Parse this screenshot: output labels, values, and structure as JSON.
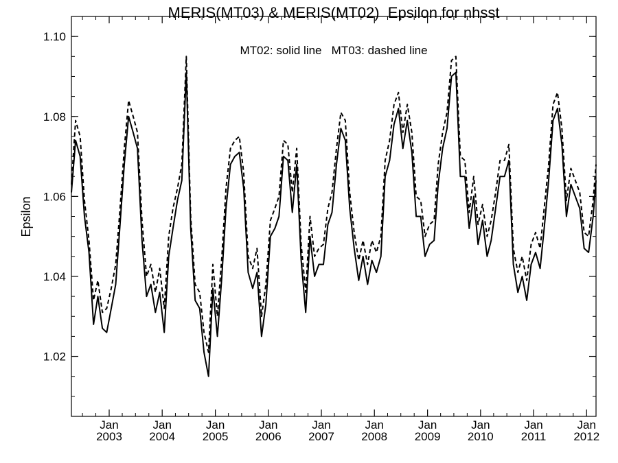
{
  "chart_data": {
    "type": "line",
    "title": "MERIS(MT03) & MERIS(MT02)  Epsilon for nhsst",
    "xlabel": "",
    "ylabel": "Epsilon",
    "annotation": "MT02: solid line   MT03: dashed line",
    "xlim": [
      "2002-04-16",
      "2012-03-06"
    ],
    "ylim": [
      1.005,
      1.105
    ],
    "yticks": [
      1.02,
      1.04,
      1.06,
      1.08,
      1.1
    ],
    "ytick_labels": [
      "1.02",
      "1.04",
      "1.06",
      "1.08",
      "1.10"
    ],
    "xticks": [
      {
        "date": "2003-01-01",
        "label": "Jan",
        "year": "2003"
      },
      {
        "date": "2004-01-01",
        "label": "Jan",
        "year": "2004"
      },
      {
        "date": "2005-01-01",
        "label": "Jan",
        "year": "2005"
      },
      {
        "date": "2006-01-01",
        "label": "Jan",
        "year": "2006"
      },
      {
        "date": "2007-01-01",
        "label": "Jan",
        "year": "2007"
      },
      {
        "date": "2008-01-01",
        "label": "Jan",
        "year": "2008"
      },
      {
        "date": "2009-01-01",
        "label": "Jan",
        "year": "2009"
      },
      {
        "date": "2010-01-01",
        "label": "Jan",
        "year": "2010"
      },
      {
        "date": "2011-01-01",
        "label": "Jan",
        "year": "2011"
      },
      {
        "date": "2012-01-01",
        "label": "Jan",
        "year": "2012"
      }
    ],
    "grid": false,
    "series": [
      {
        "name": "MT02",
        "style": "solid",
        "color": "#000000",
        "x": [
          "2002-04-16",
          "2002-05-15",
          "2002-06-15",
          "2002-07-15",
          "2002-08-15",
          "2002-09-15",
          "2002-10-15",
          "2002-11-15",
          "2002-12-15",
          "2003-01-15",
          "2003-02-15",
          "2003-03-15",
          "2003-04-15",
          "2003-05-15",
          "2003-06-15",
          "2003-07-15",
          "2003-08-15",
          "2003-09-15",
          "2003-10-15",
          "2003-11-15",
          "2003-12-15",
          "2004-01-15",
          "2004-02-15",
          "2004-03-15",
          "2004-04-15",
          "2004-05-15",
          "2004-06-15",
          "2004-07-15",
          "2004-08-15",
          "2004-09-15",
          "2004-10-15",
          "2004-11-15",
          "2004-12-15",
          "2005-01-15",
          "2005-02-15",
          "2005-03-15",
          "2005-04-15",
          "2005-05-15",
          "2005-06-15",
          "2005-07-15",
          "2005-08-15",
          "2005-09-15",
          "2005-10-15",
          "2005-11-15",
          "2005-12-15",
          "2006-01-15",
          "2006-02-15",
          "2006-03-15",
          "2006-04-15",
          "2006-05-15",
          "2006-06-15",
          "2006-07-15",
          "2006-08-15",
          "2006-09-15",
          "2006-10-15",
          "2006-11-15",
          "2006-12-15",
          "2007-01-15",
          "2007-02-15",
          "2007-03-15",
          "2007-04-15",
          "2007-05-15",
          "2007-06-15",
          "2007-07-15",
          "2007-08-15",
          "2007-09-15",
          "2007-10-15",
          "2007-11-15",
          "2007-12-15",
          "2008-01-15",
          "2008-02-15",
          "2008-03-15",
          "2008-04-15",
          "2008-05-15",
          "2008-06-15",
          "2008-07-15",
          "2008-08-15",
          "2008-09-15",
          "2008-10-15",
          "2008-11-15",
          "2008-12-15",
          "2009-01-15",
          "2009-02-15",
          "2009-03-15",
          "2009-04-15",
          "2009-05-15",
          "2009-06-15",
          "2009-07-15",
          "2009-08-15",
          "2009-09-15",
          "2009-10-15",
          "2009-11-15",
          "2009-12-15",
          "2010-01-15",
          "2010-02-15",
          "2010-03-15",
          "2010-04-15",
          "2010-05-15",
          "2010-06-15",
          "2010-07-15",
          "2010-08-15",
          "2010-09-15",
          "2010-10-15",
          "2010-11-15",
          "2010-12-15",
          "2011-01-15",
          "2011-02-15",
          "2011-03-15",
          "2011-04-15",
          "2011-05-15",
          "2011-06-15",
          "2011-07-15",
          "2011-08-15",
          "2011-09-15",
          "2011-10-15",
          "2011-11-15",
          "2011-12-15",
          "2012-01-15",
          "2012-02-15",
          "2012-03-06"
        ],
        "values": [
          1.061,
          1.074,
          1.07,
          1.055,
          1.046,
          1.028,
          1.035,
          1.027,
          1.026,
          1.032,
          1.038,
          1.052,
          1.068,
          1.08,
          1.076,
          1.072,
          1.049,
          1.035,
          1.038,
          1.031,
          1.036,
          1.026,
          1.045,
          1.052,
          1.059,
          1.064,
          1.091,
          1.052,
          1.034,
          1.032,
          1.021,
          1.015,
          1.037,
          1.025,
          1.04,
          1.057,
          1.068,
          1.07,
          1.071,
          1.062,
          1.041,
          1.037,
          1.041,
          1.025,
          1.033,
          1.05,
          1.052,
          1.055,
          1.07,
          1.069,
          1.056,
          1.068,
          1.044,
          1.031,
          1.05,
          1.04,
          1.043,
          1.043,
          1.053,
          1.056,
          1.068,
          1.077,
          1.074,
          1.057,
          1.047,
          1.039,
          1.045,
          1.038,
          1.044,
          1.041,
          1.045,
          1.065,
          1.069,
          1.078,
          1.082,
          1.072,
          1.079,
          1.071,
          1.055,
          1.055,
          1.045,
          1.048,
          1.049,
          1.063,
          1.072,
          1.077,
          1.09,
          1.091,
          1.065,
          1.065,
          1.052,
          1.06,
          1.048,
          1.054,
          1.045,
          1.049,
          1.057,
          1.065,
          1.065,
          1.069,
          1.043,
          1.036,
          1.04,
          1.034,
          1.043,
          1.046,
          1.042,
          1.052,
          1.064,
          1.079,
          1.082,
          1.073,
          1.055,
          1.063,
          1.06,
          1.057,
          1.047,
          1.046,
          1.055,
          1.064
        ]
      },
      {
        "name": "MT03",
        "style": "dashed",
        "color": "#000000",
        "x": [
          "2002-04-16",
          "2002-05-15",
          "2002-06-15",
          "2002-07-15",
          "2002-08-15",
          "2002-09-15",
          "2002-10-15",
          "2002-11-15",
          "2002-12-15",
          "2003-01-15",
          "2003-02-15",
          "2003-03-15",
          "2003-04-15",
          "2003-05-15",
          "2003-06-15",
          "2003-07-15",
          "2003-08-15",
          "2003-09-15",
          "2003-10-15",
          "2003-11-15",
          "2003-12-15",
          "2004-01-15",
          "2004-02-15",
          "2004-03-15",
          "2004-04-15",
          "2004-05-15",
          "2004-06-15",
          "2004-07-15",
          "2004-08-15",
          "2004-09-15",
          "2004-10-15",
          "2004-11-15",
          "2004-12-15",
          "2005-01-15",
          "2005-02-15",
          "2005-03-15",
          "2005-04-15",
          "2005-05-15",
          "2005-06-15",
          "2005-07-15",
          "2005-08-15",
          "2005-09-15",
          "2005-10-15",
          "2005-11-15",
          "2005-12-15",
          "2006-01-15",
          "2006-02-15",
          "2006-03-15",
          "2006-04-15",
          "2006-05-15",
          "2006-06-15",
          "2006-07-15",
          "2006-08-15",
          "2006-09-15",
          "2006-10-15",
          "2006-11-15",
          "2006-12-15",
          "2007-01-15",
          "2007-02-15",
          "2007-03-15",
          "2007-04-15",
          "2007-05-15",
          "2007-06-15",
          "2007-07-15",
          "2007-08-15",
          "2007-09-15",
          "2007-10-15",
          "2007-11-15",
          "2007-12-15",
          "2008-01-15",
          "2008-02-15",
          "2008-03-15",
          "2008-04-15",
          "2008-05-15",
          "2008-06-15",
          "2008-07-15",
          "2008-08-15",
          "2008-09-15",
          "2008-10-15",
          "2008-11-15",
          "2008-12-15",
          "2009-01-15",
          "2009-02-15",
          "2009-03-15",
          "2009-04-15",
          "2009-05-15",
          "2009-06-15",
          "2009-07-15",
          "2009-08-15",
          "2009-09-15",
          "2009-10-15",
          "2009-11-15",
          "2009-12-15",
          "2010-01-15",
          "2010-02-15",
          "2010-03-15",
          "2010-04-15",
          "2010-05-15",
          "2010-06-15",
          "2010-07-15",
          "2010-08-15",
          "2010-09-15",
          "2010-10-15",
          "2010-11-15",
          "2010-12-15",
          "2011-01-15",
          "2011-02-15",
          "2011-03-15",
          "2011-04-15",
          "2011-05-15",
          "2011-06-15",
          "2011-07-15",
          "2011-08-15",
          "2011-09-15",
          "2011-10-15",
          "2011-11-15",
          "2011-12-15",
          "2012-01-15",
          "2012-02-15",
          "2012-03-06"
        ],
        "values": [
          1.063,
          1.079,
          1.075,
          1.059,
          1.049,
          1.034,
          1.039,
          1.031,
          1.032,
          1.037,
          1.043,
          1.056,
          1.072,
          1.084,
          1.08,
          1.076,
          1.054,
          1.04,
          1.043,
          1.036,
          1.042,
          1.032,
          1.05,
          1.057,
          1.062,
          1.068,
          1.095,
          1.055,
          1.038,
          1.036,
          1.026,
          1.021,
          1.043,
          1.03,
          1.045,
          1.062,
          1.072,
          1.074,
          1.075,
          1.066,
          1.045,
          1.042,
          1.047,
          1.03,
          1.038,
          1.054,
          1.057,
          1.06,
          1.074,
          1.073,
          1.061,
          1.072,
          1.048,
          1.036,
          1.055,
          1.045,
          1.047,
          1.048,
          1.057,
          1.061,
          1.072,
          1.081,
          1.079,
          1.061,
          1.051,
          1.044,
          1.049,
          1.043,
          1.049,
          1.046,
          1.05,
          1.069,
          1.074,
          1.083,
          1.086,
          1.076,
          1.083,
          1.076,
          1.06,
          1.059,
          1.05,
          1.053,
          1.054,
          1.068,
          1.076,
          1.081,
          1.094,
          1.095,
          1.07,
          1.069,
          1.056,
          1.065,
          1.053,
          1.058,
          1.05,
          1.054,
          1.061,
          1.069,
          1.069,
          1.073,
          1.047,
          1.041,
          1.045,
          1.039,
          1.048,
          1.051,
          1.047,
          1.057,
          1.068,
          1.083,
          1.086,
          1.077,
          1.059,
          1.067,
          1.064,
          1.061,
          1.051,
          1.05,
          1.059,
          1.068
        ]
      }
    ]
  }
}
